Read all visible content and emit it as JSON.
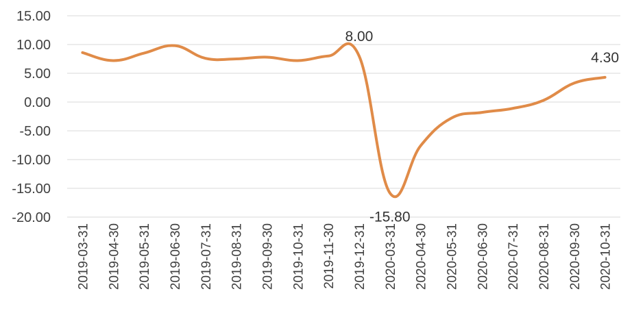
{
  "chart_data": {
    "type": "line",
    "title": "",
    "xlabel": "",
    "ylabel": "",
    "ylim": [
      -20,
      15
    ],
    "y_ticks": [
      "15.00",
      "10.00",
      "5.00",
      "0.00",
      "-5.00",
      "-10.00",
      "-15.00",
      "-20.00"
    ],
    "grid": "horizontal",
    "categories": [
      "2019-03-31",
      "2019-04-30",
      "2019-05-31",
      "2019-06-30",
      "2019-07-31",
      "2019-08-31",
      "2019-09-30",
      "2019-10-31",
      "2019-11-30",
      "2019-12-31",
      "2020-03-31",
      "2020-04-30",
      "2020-05-31",
      "2020-06-30",
      "2020-07-31",
      "2020-08-31",
      "2020-09-30",
      "2020-10-31"
    ],
    "series": [
      {
        "values": [
          8.6,
          7.2,
          8.5,
          9.8,
          7.6,
          7.5,
          7.8,
          7.2,
          8.0,
          8.0,
          -15.8,
          -7.6,
          -2.8,
          -1.8,
          -1.1,
          0.3,
          3.3,
          4.3
        ],
        "color": "#e08b48"
      }
    ],
    "annotations": [
      {
        "index": 9,
        "text": "8.00",
        "position": "above"
      },
      {
        "index": 10,
        "text": "-15.80",
        "position": "below"
      },
      {
        "index": 17,
        "text": "4.30",
        "position": "above"
      }
    ]
  }
}
